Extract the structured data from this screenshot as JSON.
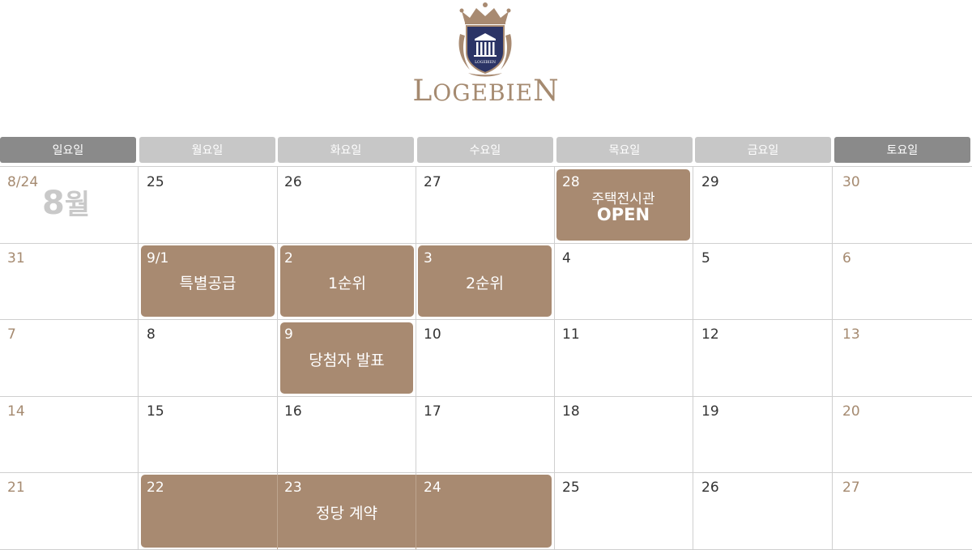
{
  "brand": {
    "crest_text": "LOGEBIEN",
    "name_first_cap": "L",
    "name_middle": "OGEBIE",
    "name_last_cap": "N"
  },
  "colors": {
    "accent": "#a88a71",
    "header_weekday": "#c7c7c7",
    "header_weekend": "#8a8a8a",
    "weekend_text": "#a58a70",
    "crest_navy": "#2b3466"
  },
  "calendar": {
    "month_label_num": "8",
    "month_label_suffix": "월",
    "weekdays": [
      "일요일",
      "월요일",
      "화요일",
      "수요일",
      "목요일",
      "금요일",
      "토요일"
    ],
    "weeks": [
      [
        "8/24",
        "25",
        "26",
        "27",
        "28",
        "29",
        "30"
      ],
      [
        "31",
        "9/1",
        "2",
        "3",
        "4",
        "5",
        "6"
      ],
      [
        "7",
        "8",
        "9",
        "10",
        "11",
        "12",
        "13"
      ],
      [
        "14",
        "15",
        "16",
        "17",
        "18",
        "19",
        "20"
      ],
      [
        "21",
        "22",
        "23",
        "24",
        "25",
        "26",
        "27"
      ]
    ],
    "events": {
      "model_house_line1": "주택전시관",
      "model_house_line2": "OPEN",
      "special_supply": "특별공급",
      "first_priority": "1순위",
      "second_priority": "2순위",
      "winner_announcement": "당첨자 발표",
      "contract": "정당 계약"
    }
  }
}
